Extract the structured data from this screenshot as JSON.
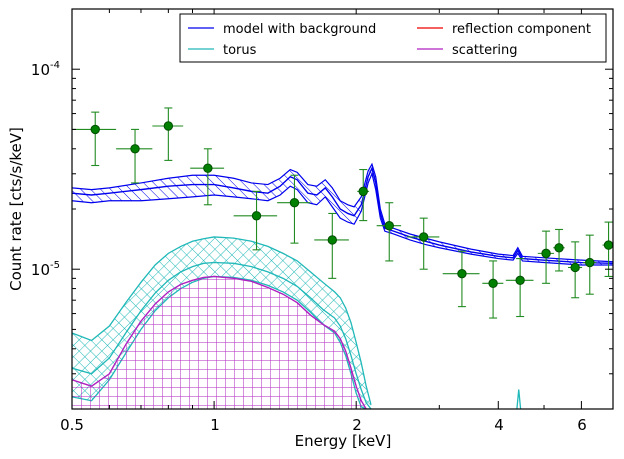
{
  "chart_data": {
    "type": "scatter",
    "xlabel": "Energy [keV]",
    "ylabel": "Count rate [cts/s/keV]",
    "xscale": "log",
    "yscale": "log",
    "xlim": [
      0.5,
      7.0
    ],
    "ylim": [
      2e-06,
      0.0002
    ],
    "x_ticks": [
      "0.5",
      "1",
      "2",
      "4",
      "6"
    ],
    "y_ticks": [
      {
        "base": "10",
        "exp": "-5"
      },
      {
        "base": "10",
        "exp": "-4"
      }
    ],
    "legend": {
      "position": "top-right",
      "columns": 2,
      "entries": [
        {
          "label": "model with background",
          "color": "#0000ee"
        },
        {
          "label": "reflection component",
          "color": "#ee0000"
        },
        {
          "label": "torus",
          "color": "#20b8b8"
        },
        {
          "label": "scattering",
          "color": "#b020c0"
        }
      ]
    },
    "colors": {
      "data": "#008000",
      "data_edge": "#004d00",
      "errorbar": "#228b22"
    },
    "data_points": [
      {
        "x": 0.56,
        "y": 5e-05,
        "xerr": [
          0.06,
          0.06
        ],
        "yerr": [
          1.7e-05,
          1.1e-05
        ]
      },
      {
        "x": 0.68,
        "y": 4e-05,
        "xerr": [
          0.06,
          0.06
        ],
        "yerr": [
          1.3e-05,
          1e-05
        ]
      },
      {
        "x": 0.8,
        "y": 5.2e-05,
        "xerr": [
          0.06,
          0.06
        ],
        "yerr": [
          1.7e-05,
          1.2e-05
        ]
      },
      {
        "x": 0.97,
        "y": 3.2e-05,
        "xerr": [
          0.08,
          0.08
        ],
        "yerr": [
          1.1e-05,
          8e-06
        ]
      },
      {
        "x": 1.23,
        "y": 1.85e-05,
        "xerr": [
          0.13,
          0.13
        ],
        "yerr": [
          6e-06,
          6e-06
        ]
      },
      {
        "x": 1.48,
        "y": 2.15e-05,
        "xerr": [
          0.12,
          0.12
        ],
        "yerr": [
          8e-06,
          8e-06
        ]
      },
      {
        "x": 1.78,
        "y": 1.4e-05,
        "xerr": [
          0.15,
          0.15
        ],
        "yerr": [
          5e-06,
          5e-06
        ]
      },
      {
        "x": 2.07,
        "y": 2.45e-05,
        "xerr": [
          0.06,
          0.06
        ],
        "yerr": [
          7e-06,
          7e-06
        ]
      },
      {
        "x": 2.35,
        "y": 1.65e-05,
        "xerr": [
          0.14,
          0.14
        ],
        "yerr": [
          5.5e-06,
          5e-06
        ]
      },
      {
        "x": 2.78,
        "y": 1.45e-05,
        "xerr": [
          0.22,
          0.22
        ],
        "yerr": [
          4.5e-06,
          3.5e-06
        ]
      },
      {
        "x": 3.35,
        "y": 9.5e-06,
        "xerr": [
          0.3,
          0.3
        ],
        "yerr": [
          3e-06,
          2.8e-06
        ]
      },
      {
        "x": 3.9,
        "y": 8.5e-06,
        "xerr": [
          0.2,
          0.2
        ],
        "yerr": [
          2.8e-06,
          2.5e-06
        ]
      },
      {
        "x": 4.45,
        "y": 8.8e-06,
        "xerr": [
          0.3,
          0.3
        ],
        "yerr": [
          3e-06,
          2.5e-06
        ]
      },
      {
        "x": 5.05,
        "y": 1.2e-05,
        "xerr": [
          0.2,
          0.2
        ],
        "yerr": [
          3.5e-06,
          3.5e-06
        ]
      },
      {
        "x": 5.38,
        "y": 1.28e-05,
        "xerr": [
          0.15,
          0.15
        ],
        "yerr": [
          3e-06,
          3e-06
        ]
      },
      {
        "x": 5.82,
        "y": 1.02e-05,
        "xerr": [
          0.2,
          0.2
        ],
        "yerr": [
          3e-06,
          3.5e-06
        ]
      },
      {
        "x": 6.25,
        "y": 1.08e-05,
        "xerr": [
          0.2,
          0.2
        ],
        "yerr": [
          3.3e-06,
          4e-06
        ]
      },
      {
        "x": 6.85,
        "y": 1.32e-05,
        "xerr": [
          0.2,
          0.15
        ],
        "yerr": [
          4e-06,
          4e-06
        ]
      }
    ],
    "model": {
      "x": [
        0.5,
        0.55,
        0.6,
        0.7,
        0.8,
        0.9,
        1.0,
        1.1,
        1.2,
        1.3,
        1.38,
        1.45,
        1.5,
        1.58,
        1.65,
        1.72,
        1.78,
        1.85,
        1.92,
        1.98,
        2.05,
        2.12,
        2.16,
        2.2,
        2.25,
        2.3,
        2.4,
        2.6,
        2.8,
        3.0,
        3.5,
        4.0,
        4.3,
        4.4,
        4.5,
        5.0,
        6.0,
        7.0
      ],
      "center": [
        2.4e-05,
        2.35e-05,
        2.4e-05,
        2.5e-05,
        2.6e-05,
        2.65e-05,
        2.65e-05,
        2.55e-05,
        2.45e-05,
        2.4e-05,
        2.6e-05,
        2.9e-05,
        2.8e-05,
        2.4e-05,
        2.35e-05,
        2.55e-05,
        2.3e-05,
        2e-05,
        1.9e-05,
        1.85e-05,
        2.1e-05,
        2.9e-05,
        3.2e-05,
        2.7e-05,
        1.9e-05,
        1.6e-05,
        1.55e-05,
        1.45e-05,
        1.38e-05,
        1.32e-05,
        1.22e-05,
        1.16e-05,
        1.14e-05,
        1.24e-05,
        1.13e-05,
        1.11e-05,
        1.08e-05,
        1.07e-05
      ],
      "lower": [
        2.2e-05,
        2.15e-05,
        2.2e-05,
        2.2e-05,
        2.25e-05,
        2.3e-05,
        2.35e-05,
        2.3e-05,
        2.25e-05,
        2.2e-05,
        2.35e-05,
        2.6e-05,
        2.5e-05,
        2.15e-05,
        2.1e-05,
        2.3e-05,
        2.05e-05,
        1.8e-05,
        1.72e-05,
        1.68e-05,
        1.95e-05,
        2.7e-05,
        3e-05,
        2.5e-05,
        1.8e-05,
        1.55e-05,
        1.5e-05,
        1.4e-05,
        1.33e-05,
        1.28e-05,
        1.19e-05,
        1.13e-05,
        1.11e-05,
        1.2e-05,
        1.1e-05,
        1.08e-05,
        1.05e-05,
        1.05e-05
      ],
      "upper": [
        2.55e-05,
        2.5e-05,
        2.55e-05,
        2.7e-05,
        2.85e-05,
        2.95e-05,
        2.95e-05,
        2.85e-05,
        2.7e-05,
        2.65e-05,
        2.85e-05,
        3.15e-05,
        3.05e-05,
        2.65e-05,
        2.6e-05,
        2.8e-05,
        2.55e-05,
        2.2e-05,
        2.1e-05,
        2.05e-05,
        2.3e-05,
        3.1e-05,
        3.35e-05,
        2.9e-05,
        2e-05,
        1.68e-05,
        1.6e-05,
        1.5e-05,
        1.43e-05,
        1.37e-05,
        1.26e-05,
        1.19e-05,
        1.17e-05,
        1.28e-05,
        1.16e-05,
        1.14e-05,
        1.11e-05,
        1.09e-05
      ]
    },
    "torus": {
      "x": [
        0.5,
        0.55,
        0.6,
        0.65,
        0.7,
        0.75,
        0.8,
        0.85,
        0.9,
        0.95,
        1.0,
        1.1,
        1.2,
        1.3,
        1.4,
        1.5,
        1.6,
        1.7,
        1.8,
        1.85,
        1.9,
        1.95,
        2.0,
        2.05,
        2.1,
        2.15
      ],
      "center": [
        3.2e-06,
        3e-06,
        3.6e-06,
        4.8e-06,
        6.2e-06,
        7.6e-06,
        8.8e-06,
        9.7e-06,
        1.03e-05,
        1.07e-05,
        1.08e-05,
        1.07e-05,
        1.03e-05,
        9.7e-06,
        9e-06,
        8.2e-06,
        7.2e-06,
        6.3e-06,
        5.7e-06,
        5.2e-06,
        4.5e-06,
        3.7e-06,
        3e-06,
        2.5e-06,
        2.15e-06,
        2e-06
      ],
      "lower": [
        2.3e-06,
        2.2e-06,
        2.8e-06,
        3.8e-06,
        5e-06,
        6.2e-06,
        7.2e-06,
        8e-06,
        8.6e-06,
        9e-06,
        9.2e-06,
        9.1e-06,
        8.8e-06,
        8.3e-06,
        7.7e-06,
        7e-06,
        6.1e-06,
        5.3e-06,
        4.8e-06,
        4.3e-06,
        3.7e-06,
        3e-06,
        2.4e-06,
        2.05e-06,
        2e-06,
        2e-06
      ],
      "upper": [
        4.8e-06,
        4.4e-06,
        5.2e-06,
        6.8e-06,
        8.6e-06,
        1.05e-05,
        1.2e-05,
        1.3e-05,
        1.38e-05,
        1.42e-05,
        1.45e-05,
        1.43e-05,
        1.38e-05,
        1.3e-05,
        1.2e-05,
        1.1e-05,
        9.7e-06,
        8.6e-06,
        7.7e-06,
        7.2e-06,
        6.4e-06,
        5.4e-06,
        4.3e-06,
        3.4e-06,
        2.6e-06,
        2.1e-06
      ]
    },
    "scattering": {
      "x": [
        0.5,
        0.55,
        0.6,
        0.65,
        0.7,
        0.75,
        0.8,
        0.85,
        0.9,
        0.95,
        1.0,
        1.1,
        1.2,
        1.3,
        1.4,
        1.5,
        1.6,
        1.7,
        1.8,
        1.85,
        1.9,
        1.95,
        2.0,
        2.05,
        2.1
      ],
      "center": [
        2.8e-06,
        2.6e-06,
        3e-06,
        4.2e-06,
        5.5e-06,
        6.7e-06,
        7.7e-06,
        8.4e-06,
        8.8e-06,
        9.1e-06,
        9.2e-06,
        9e-06,
        8.7e-06,
        8.1e-06,
        7.5e-06,
        6.8e-06,
        5.9e-06,
        5.3e-06,
        4.9e-06,
        4.5e-06,
        3.9e-06,
        3.2e-06,
        2.6e-06,
        2.2e-06,
        2e-06
      ]
    },
    "reflection": {
      "x": [
        4.38,
        4.42,
        4.46
      ],
      "center": [
        2e-06,
        2.5e-06,
        2e-06
      ]
    }
  }
}
